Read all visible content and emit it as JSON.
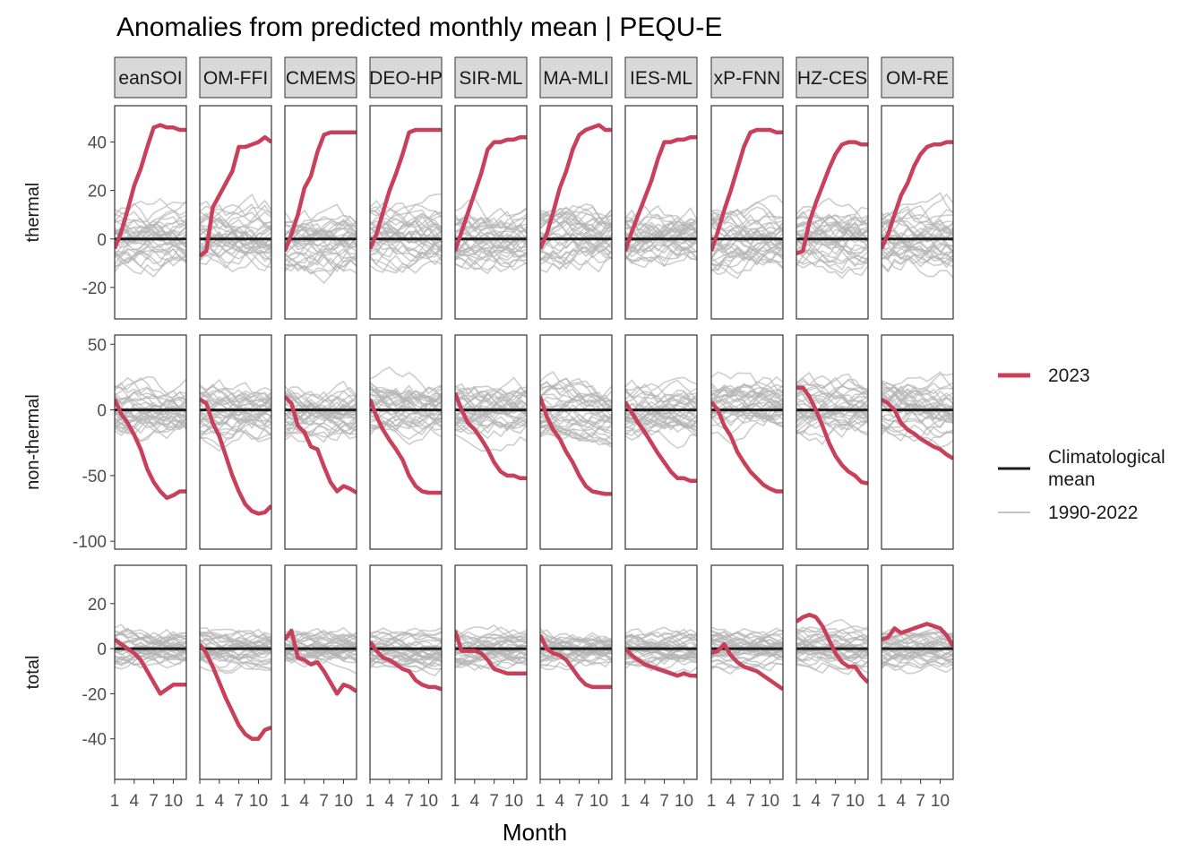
{
  "chart_data": {
    "type": "line",
    "title": "Anomalies from predicted monthly mean | PEQU-E",
    "xlabel": "Month",
    "x": [
      1,
      2,
      3,
      4,
      5,
      6,
      7,
      8,
      9,
      10,
      11,
      12
    ],
    "x_ticks": [
      "1",
      "4",
      "7",
      "10"
    ],
    "columns": [
      "eanSOI",
      "OM-FFI",
      "CMEMS",
      "DEO-HP",
      "SIR-ML",
      "MA-MLI",
      "IES-ML",
      "xP-FNN",
      "HZ-CES",
      "OM-RE"
    ],
    "rows": [
      {
        "label": "thermal",
        "ylim": [
          -33,
          55
        ],
        "ticks": [
          -20,
          0,
          20,
          40
        ],
        "tick_labels": [
          "-20",
          "0",
          "20",
          "40"
        ]
      },
      {
        "label": "non-thermal",
        "ylim": [
          -106,
          57
        ],
        "ticks": [
          -100,
          -50,
          0,
          50
        ],
        "tick_labels": [
          "-100",
          "-50",
          "0",
          "50"
        ]
      },
      {
        "label": "total",
        "ylim": [
          -58,
          37
        ],
        "ticks": [
          -40,
          -20,
          0,
          20
        ],
        "tick_labels": [
          "-40",
          "-20",
          "0",
          "20"
        ]
      }
    ],
    "series_2023": [
      [
        [
          -4,
          3,
          12,
          22,
          29,
          38,
          46,
          47,
          46,
          46,
          45,
          45
        ],
        [
          -7,
          -5,
          13,
          18,
          23,
          28,
          38,
          38,
          39,
          40,
          42,
          40
        ],
        [
          -5,
          2,
          10,
          21,
          26,
          36,
          43,
          44,
          44,
          44,
          44,
          44
        ],
        [
          -4,
          2,
          11,
          20,
          27,
          35,
          44,
          45,
          45,
          45,
          45,
          45
        ],
        [
          -5,
          3,
          11,
          19,
          27,
          37,
          40,
          40,
          41,
          41,
          42,
          42
        ],
        [
          -4,
          2,
          11,
          21,
          28,
          37,
          43,
          45,
          46,
          47,
          45,
          45
        ],
        [
          -5,
          3,
          10,
          17,
          24,
          33,
          40,
          40,
          41,
          41,
          42,
          42
        ],
        [
          -5,
          3,
          12,
          20,
          29,
          38,
          44,
          45,
          45,
          45,
          44,
          44
        ],
        [
          -6,
          -5,
          7,
          15,
          22,
          29,
          35,
          39,
          40,
          40,
          39,
          39
        ],
        [
          -4,
          2,
          10,
          18,
          23,
          30,
          35,
          38,
          39,
          39,
          40,
          40
        ]
      ],
      [
        [
          8,
          -3,
          -10,
          -19,
          -30,
          -45,
          -55,
          -62,
          -67,
          -65,
          -62,
          -62
        ],
        [
          8,
          5,
          -10,
          -20,
          -35,
          -50,
          -62,
          -72,
          -77,
          -79,
          -78,
          -73
        ],
        [
          10,
          5,
          -12,
          -17,
          -28,
          -30,
          -43,
          -55,
          -62,
          -58,
          -60,
          -63
        ],
        [
          8,
          -5,
          -15,
          -23,
          -30,
          -38,
          -50,
          -58,
          -62,
          -63,
          -63,
          -63
        ],
        [
          13,
          0,
          -10,
          -15,
          -22,
          -30,
          -40,
          -47,
          -50,
          -50,
          -52,
          -52
        ],
        [
          10,
          -5,
          -15,
          -22,
          -32,
          -40,
          -50,
          -58,
          -62,
          -63,
          -64,
          -64
        ],
        [
          6,
          -2,
          -10,
          -17,
          -25,
          -33,
          -40,
          -47,
          -52,
          -52,
          -54,
          -54
        ],
        [
          6,
          0,
          -12,
          -20,
          -32,
          -40,
          -47,
          -52,
          -57,
          -60,
          -62,
          -62
        ],
        [
          17,
          17,
          10,
          0,
          -12,
          -25,
          -35,
          -42,
          -47,
          -50,
          -55,
          -56
        ],
        [
          8,
          5,
          0,
          -10,
          -15,
          -18,
          -22,
          -25,
          -28,
          -30,
          -34,
          -37
        ]
      ],
      [
        [
          4,
          2,
          0,
          -2,
          -5,
          -10,
          -15,
          -20,
          -18,
          -16,
          -16,
          -16
        ],
        [
          2,
          -2,
          -8,
          -15,
          -22,
          -28,
          -34,
          -38,
          -40,
          -40,
          -36,
          -35
        ],
        [
          4,
          8,
          -4,
          -5,
          -7,
          -6,
          -10,
          -15,
          -20,
          -16,
          -17,
          -19
        ],
        [
          3,
          -1,
          -4,
          -5,
          -7,
          -9,
          -10,
          -14,
          -16,
          -17,
          -17,
          -18
        ],
        [
          8,
          -1,
          -1,
          -1,
          -2,
          -5,
          -9,
          -10,
          -11,
          -11,
          -11,
          -11
        ],
        [
          6,
          0,
          -2,
          -3,
          -5,
          -9,
          -13,
          -16,
          -17,
          -17,
          -17,
          -17
        ],
        [
          0,
          -3,
          -5,
          -7,
          -8,
          -9,
          -10,
          -11,
          -12,
          -11,
          -12,
          -12
        ],
        [
          -2,
          -1,
          2,
          -3,
          -6,
          -8,
          -9,
          -10,
          -12,
          -14,
          -16,
          -18
        ],
        [
          12,
          14,
          15,
          14,
          10,
          4,
          -2,
          -6,
          -8,
          -8,
          -12,
          -15
        ],
        [
          4,
          5,
          9,
          7,
          8,
          9,
          10,
          11,
          10,
          9,
          6,
          1
        ]
      ]
    ],
    "background_years": "1990-2022",
    "legend": [
      {
        "label": "2023",
        "color": "#c8405a"
      },
      {
        "label": "Climatological\nmean",
        "color": "#1a1a1a"
      },
      {
        "label": "1990-2022",
        "color": "#c4c4c4"
      }
    ],
    "legend_placement": "right"
  }
}
